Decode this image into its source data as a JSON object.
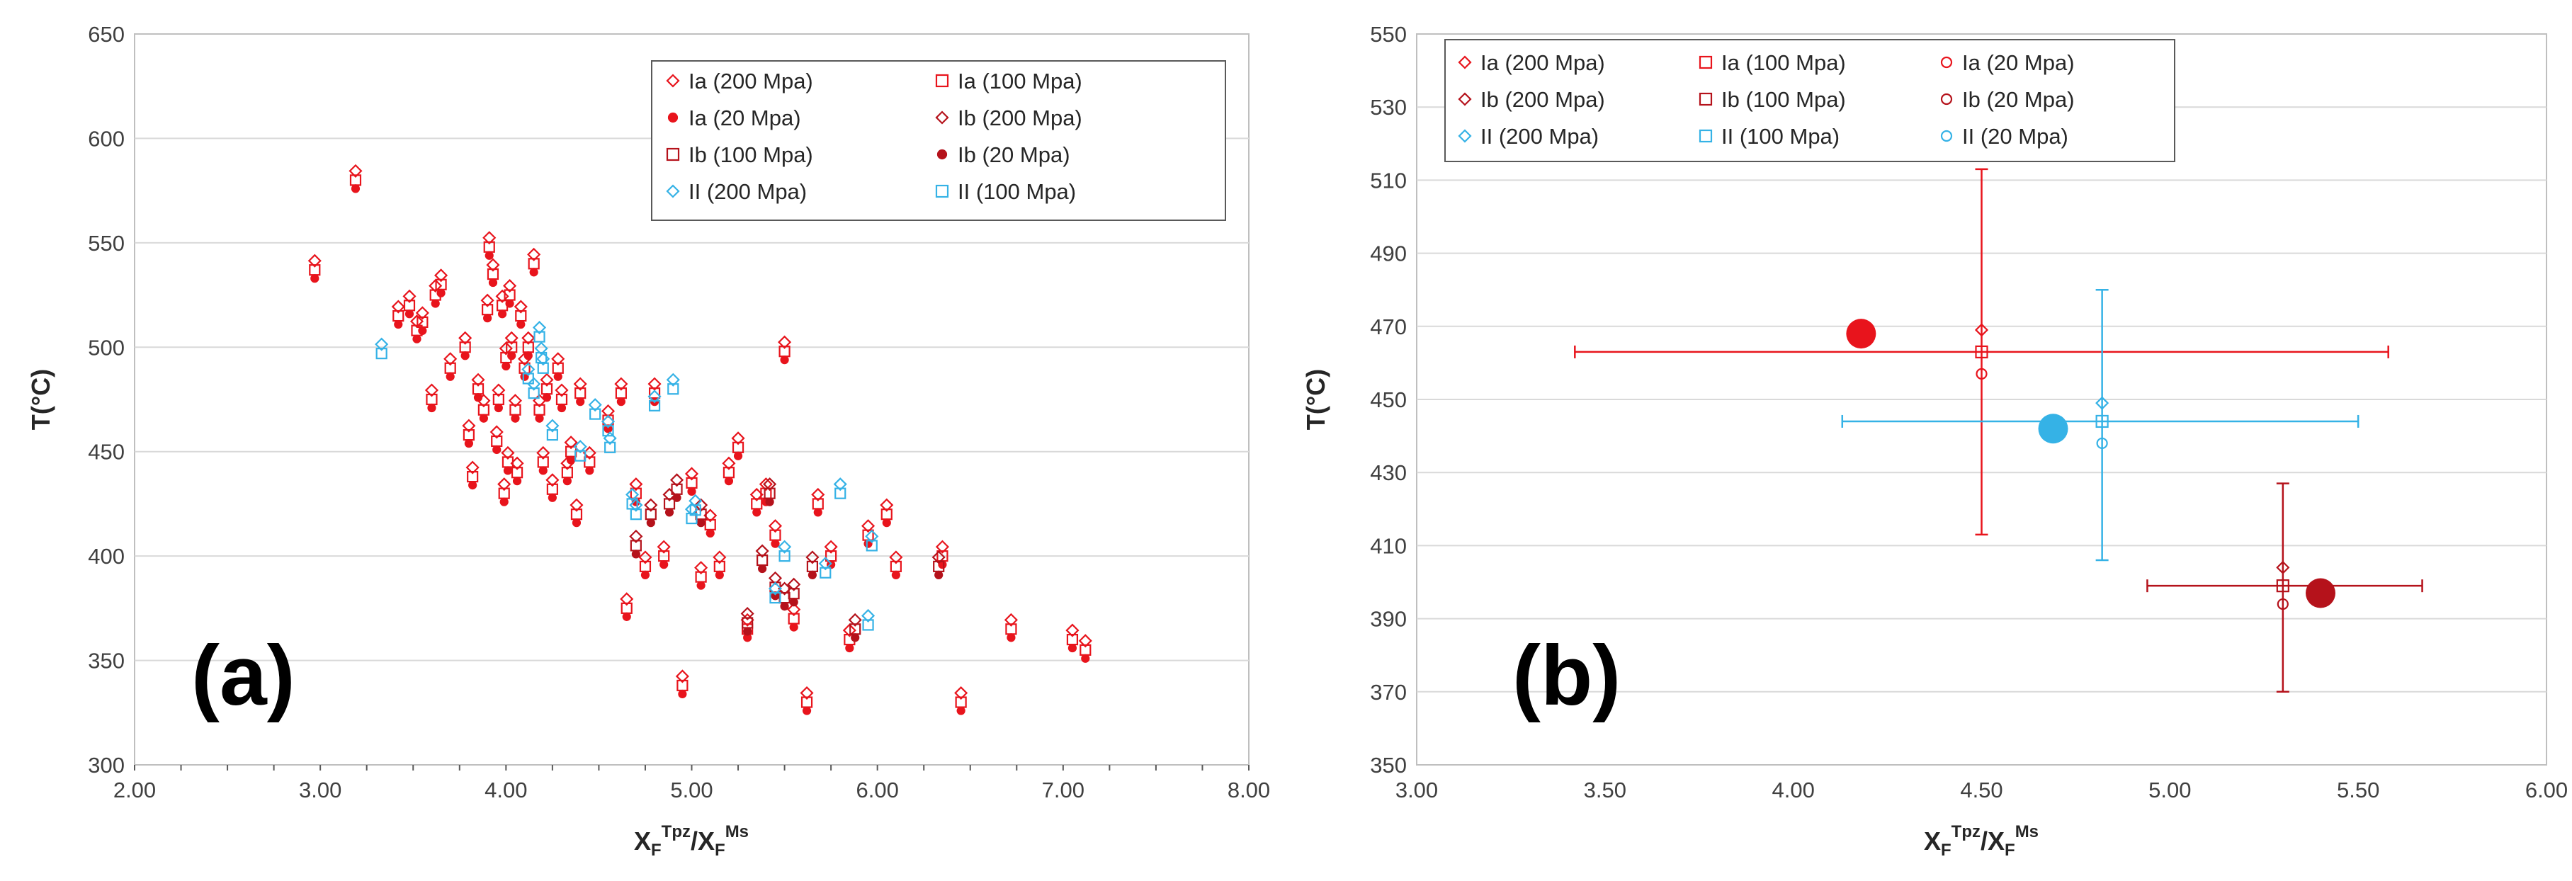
{
  "chart_data": [
    {
      "type": "scatter",
      "panel_label": "(a)",
      "ylabel": "T(°C)",
      "xlabel": {
        "base1": "X",
        "sub1": "F",
        "sup1": "Tpz",
        "slash": "/",
        "base2": "X",
        "sub2": "F",
        "sup2": "Ms"
      },
      "xlim": [
        2.0,
        8.0
      ],
      "ylim": [
        300,
        650
      ],
      "x_ticks": [
        2.0,
        3.0,
        4.0,
        5.0,
        6.0,
        7.0,
        8.0
      ],
      "x_tick_labels": [
        "2.00",
        "3.00",
        "4.00",
        "5.00",
        "6.00",
        "7.00",
        "8.00"
      ],
      "y_ticks": [
        300,
        350,
        400,
        450,
        500,
        550,
        600,
        650
      ],
      "y_tick_labels": [
        "300",
        "350",
        "400",
        "450",
        "500",
        "550",
        "600",
        "650"
      ],
      "legend": {
        "position": "top-right",
        "entries": [
          {
            "label": "Ia (200 Mpa)",
            "marker": "diamond",
            "color": "#e8141c",
            "filled": false
          },
          {
            "label": "Ia (100 Mpa)",
            "marker": "square",
            "color": "#e8141c",
            "filled": false
          },
          {
            "label": "Ia (20 Mpa)",
            "marker": "dot",
            "color": "#e8141c",
            "filled": true
          },
          {
            "label": "Ib (200 Mpa)",
            "marker": "diamond",
            "color": "#b5121b",
            "filled": false
          },
          {
            "label": "Ib (100 Mpa)",
            "marker": "square",
            "color": "#b5121b",
            "filled": false
          },
          {
            "label": "Ib (20 Mpa)",
            "marker": "dot",
            "color": "#b5121b",
            "filled": true
          },
          {
            "label": "II (200 Mpa)",
            "marker": "diamond",
            "color": "#35b2e6",
            "filled": false
          },
          {
            "label": "II (100 Mpa)",
            "marker": "square",
            "color": "#35b2e6",
            "filled": false
          }
        ]
      },
      "series": [
        {
          "name": "Ia",
          "color": "#e8141c",
          "x": [
            2.97,
            3.19,
            3.42,
            3.48,
            3.52,
            3.55,
            3.6,
            3.62,
            3.65,
            3.7,
            3.78,
            3.8,
            3.82,
            3.85,
            3.88,
            3.9,
            3.91,
            3.93,
            3.95,
            3.96,
            3.98,
            3.99,
            4.0,
            4.01,
            4.02,
            4.03,
            4.05,
            4.06,
            4.08,
            4.1,
            4.12,
            4.15,
            4.18,
            4.2,
            4.22,
            4.25,
            4.28,
            4.3,
            4.33,
            4.35,
            4.38,
            4.4,
            4.45,
            4.55,
            4.62,
            4.65,
            4.7,
            4.75,
            4.8,
            4.85,
            4.95,
            5.0,
            5.05,
            5.1,
            5.15,
            5.2,
            5.25,
            5.3,
            5.35,
            5.4,
            5.45,
            5.5,
            5.55,
            5.62,
            5.68,
            5.75,
            5.85,
            5.95,
            6.05,
            6.1,
            6.35,
            6.45,
            6.72,
            7.05,
            7.12
          ],
          "y": [
            537,
            580,
            515,
            520,
            508,
            512,
            475,
            525,
            530,
            490,
            500,
            458,
            438,
            480,
            470,
            518,
            548,
            535,
            455,
            475,
            520,
            430,
            495,
            445,
            525,
            500,
            470,
            440,
            515,
            490,
            500,
            540,
            470,
            445,
            480,
            432,
            490,
            475,
            440,
            450,
            420,
            478,
            445,
            465,
            478,
            375,
            430,
            395,
            478,
            400,
            338,
            435,
            390,
            415,
            395,
            440,
            452,
            365,
            425,
            430,
            410,
            498,
            370,
            330,
            425,
            400,
            360,
            410,
            420,
            395,
            400,
            330,
            365,
            360,
            355
          ]
        },
        {
          "name": "Ib",
          "color": "#b5121b",
          "x": [
            4.7,
            4.78,
            4.88,
            4.92,
            5.05,
            5.3,
            5.38,
            5.42,
            5.45,
            5.5,
            5.55,
            5.65,
            5.88,
            6.33
          ],
          "y": [
            405,
            420,
            425,
            432,
            420,
            368,
            398,
            430,
            385,
            380,
            382,
            395,
            365,
            395
          ]
        },
        {
          "name": "II",
          "color": "#35b2e6",
          "x": [
            3.33,
            4.12,
            4.15,
            4.18,
            4.19,
            4.2,
            4.25,
            4.4,
            4.48,
            4.55,
            4.56,
            4.68,
            4.7,
            4.8,
            4.9,
            5.0,
            5.02,
            5.45,
            5.5,
            5.72,
            5.8,
            5.95,
            5.97
          ],
          "y": [
            497,
            485,
            478,
            505,
            495,
            490,
            458,
            448,
            468,
            460,
            452,
            425,
            420,
            472,
            480,
            418,
            422,
            380,
            400,
            392,
            430,
            367,
            405
          ]
        }
      ]
    },
    {
      "type": "scatter",
      "panel_label": "(b)",
      "ylabel": "T(°C)",
      "xlabel": {
        "base1": "X",
        "sub1": "F",
        "sup1": "Tpz",
        "slash": "/",
        "base2": "X",
        "sub2": "F",
        "sup2": "Ms"
      },
      "xlim": [
        3.0,
        6.0
      ],
      "ylim": [
        350,
        550
      ],
      "x_ticks": [
        3.0,
        3.5,
        4.0,
        4.5,
        5.0,
        5.5,
        6.0
      ],
      "x_tick_labels": [
        "3.00",
        "3.50",
        "4.00",
        "4.50",
        "5.00",
        "5.50",
        "6.00"
      ],
      "y_ticks": [
        350,
        370,
        390,
        410,
        430,
        450,
        470,
        490,
        510,
        530,
        550
      ],
      "y_tick_labels": [
        "350",
        "370",
        "390",
        "410",
        "430",
        "450",
        "470",
        "490",
        "510",
        "530",
        "550"
      ],
      "legend": {
        "position": "top-left",
        "entries": [
          {
            "label": "Ia (200 Mpa)",
            "marker": "diamond",
            "color": "#e8141c"
          },
          {
            "label": "Ia (100 Mpa)",
            "marker": "square",
            "color": "#e8141c"
          },
          {
            "label": "Ia (20 Mpa)",
            "marker": "circle",
            "color": "#e8141c"
          },
          {
            "label": "Ib (200 Mpa)",
            "marker": "diamond",
            "color": "#b5121b"
          },
          {
            "label": "Ib (100 Mpa)",
            "marker": "square",
            "color": "#b5121b"
          },
          {
            "label": "Ib (20 Mpa)",
            "marker": "circle",
            "color": "#b5121b"
          },
          {
            "label": "II (200 Mpa)",
            "marker": "diamond",
            "color": "#35b2e6"
          },
          {
            "label": "II (100 Mpa)",
            "marker": "square",
            "color": "#35b2e6"
          },
          {
            "label": "II (20 Mpa)",
            "marker": "circle",
            "color": "#35b2e6"
          }
        ]
      },
      "groups": [
        {
          "name": "Ia",
          "color": "#e8141c",
          "x": 4.5,
          "y200": 469,
          "y100": 463,
          "y20": 457,
          "err_x": [
            3.42,
            5.58
          ],
          "err_y": [
            413,
            513
          ],
          "big_dot": {
            "x": 4.18,
            "y": 468
          }
        },
        {
          "name": "Ib",
          "color": "#b5121b",
          "x": 5.3,
          "y200": 404,
          "y100": 399,
          "y20": 394,
          "err_x": [
            4.94,
            5.67
          ],
          "err_y": [
            370,
            427
          ],
          "big_dot": {
            "x": 5.4,
            "y": 397
          }
        },
        {
          "name": "II",
          "color": "#35b2e6",
          "x": 4.82,
          "y200": 449,
          "y100": 444,
          "y20": 438,
          "err_x": [
            4.13,
            5.5
          ],
          "err_y": [
            406,
            480
          ],
          "big_dot": {
            "x": 4.69,
            "y": 442
          }
        }
      ]
    }
  ]
}
